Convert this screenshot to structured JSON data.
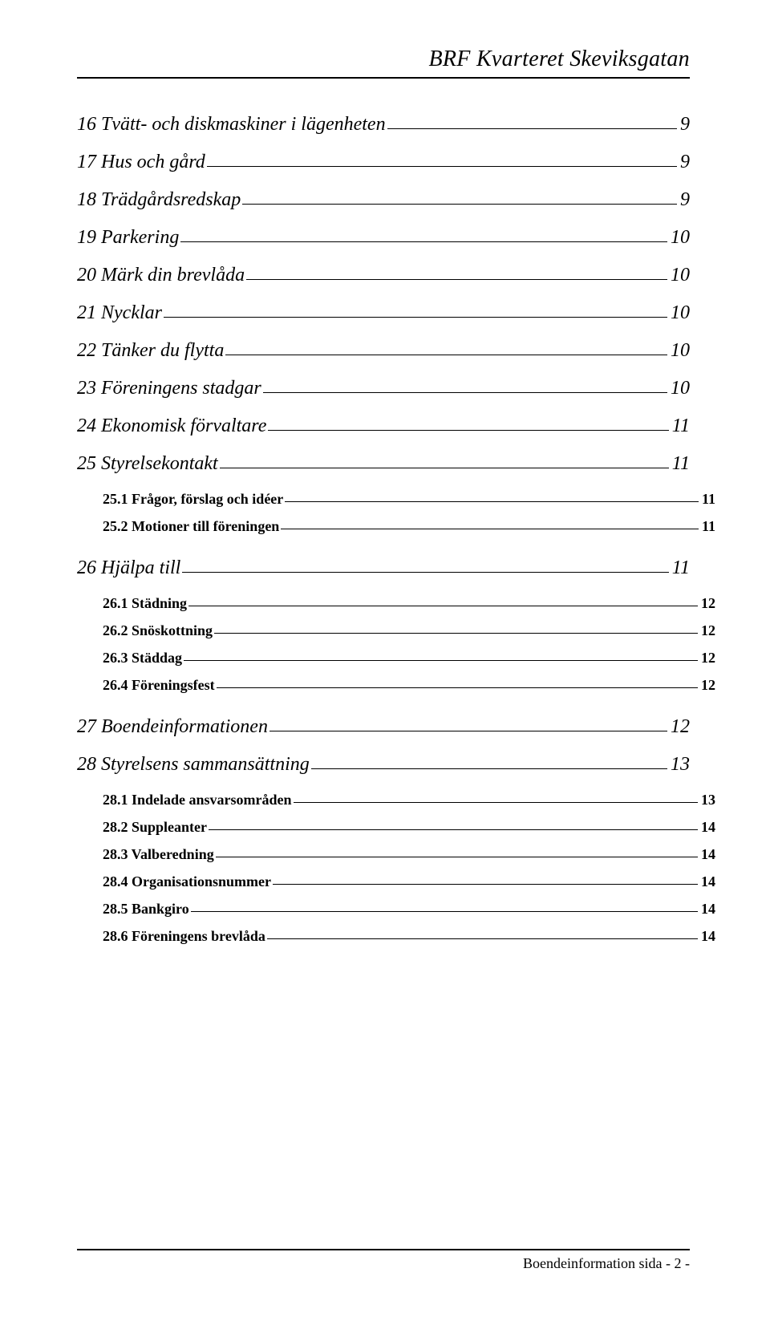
{
  "header_title": "BRF Kvarteret Skeviksgatan",
  "footer_text": "Boendeinformation sida - 2 -",
  "toc": [
    {
      "level": 1,
      "label": "16 Tvätt- och diskmaskiner i lägenheten",
      "page": "9"
    },
    {
      "level": 1,
      "label": "17 Hus och gård",
      "page": "9"
    },
    {
      "level": 1,
      "label": "18 Trädgårdsredskap",
      "page": "9"
    },
    {
      "level": 1,
      "label": "19 Parkering",
      "page": "10"
    },
    {
      "level": 1,
      "label": "20 Märk din brevlåda",
      "page": "10"
    },
    {
      "level": 1,
      "label": "21 Nycklar",
      "page": "10"
    },
    {
      "level": 1,
      "label": "22 Tänker du flytta",
      "page": "10"
    },
    {
      "level": 1,
      "label": "23 Föreningens stadgar",
      "page": "10"
    },
    {
      "level": 1,
      "label": "24 Ekonomisk förvaltare",
      "page": "11"
    },
    {
      "level": 1,
      "label": "25 Styrelsekontakt",
      "page": "11"
    },
    {
      "level": 2,
      "label": "25.1  Frågor, förslag och idéer",
      "page": "11"
    },
    {
      "level": 2,
      "label": "25.2  Motioner till föreningen",
      "page": "11",
      "last": true
    },
    {
      "level": 1,
      "label": "26 Hjälpa till",
      "page": "11"
    },
    {
      "level": 2,
      "label": "26.1  Städning",
      "page": "12"
    },
    {
      "level": 2,
      "label": "26.2  Snöskottning",
      "page": "12"
    },
    {
      "level": 2,
      "label": "26.3  Städdag",
      "page": "12"
    },
    {
      "level": 2,
      "label": "26.4  Föreningsfest",
      "page": "12",
      "last": true
    },
    {
      "level": 1,
      "label": "27 Boendeinformationen",
      "page": "12"
    },
    {
      "level": 1,
      "label": "28 Styrelsens sammansättning",
      "page": "13"
    },
    {
      "level": 2,
      "label": "28.1  Indelade ansvarsområden",
      "page": "13"
    },
    {
      "level": 2,
      "label": "28.2  Suppleanter",
      "page": "14"
    },
    {
      "level": 2,
      "label": "28.3  Valberedning",
      "page": "14"
    },
    {
      "level": 2,
      "label": "28.4  Organisationsnummer",
      "page": "14"
    },
    {
      "level": 2,
      "label": "28.5  Bankgiro",
      "page": "14"
    },
    {
      "level": 2,
      "label": "28.6  Föreningens brevlåda",
      "page": "14",
      "last": true
    }
  ]
}
